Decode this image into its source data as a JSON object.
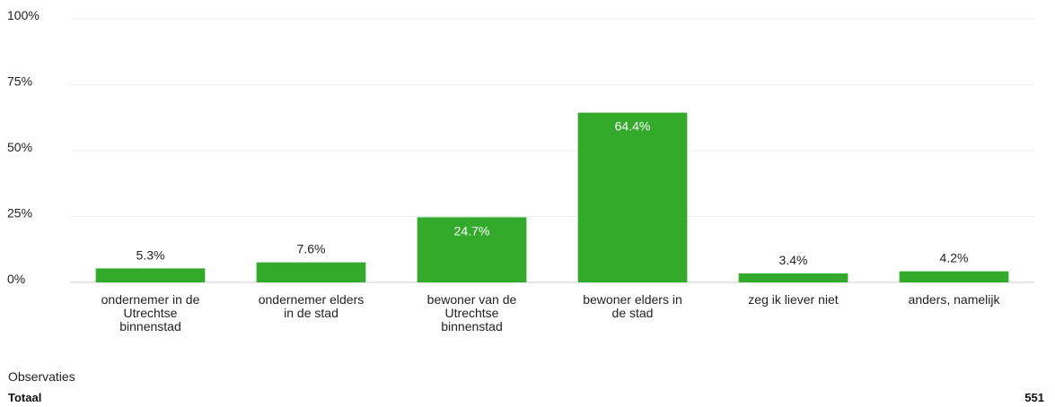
{
  "chart_data": {
    "type": "bar",
    "categories": [
      [
        "ondernemer in de",
        "Utrechtse",
        "binnenstad"
      ],
      [
        "ondernemer elders",
        "in de stad"
      ],
      [
        "bewoner van de",
        "Utrechtse",
        "binnenstad"
      ],
      [
        "bewoner elders in",
        "de stad"
      ],
      [
        "zeg ik liever niet"
      ],
      [
        "anders, namelijk"
      ]
    ],
    "values": [
      5.3,
      7.6,
      24.7,
      64.4,
      3.4,
      4.2
    ],
    "value_labels": [
      "5.3%",
      "7.6%",
      "24.7%",
      "64.4%",
      "3.4%",
      "4.2%"
    ],
    "yticks": [
      0,
      25,
      50,
      75,
      100
    ],
    "ytick_labels": [
      "0%",
      "25%",
      "50%",
      "75%",
      "100%"
    ],
    "ylim": [
      0,
      100
    ],
    "grid": true,
    "bar_color": "#33aa2c",
    "title": "",
    "xlabel": "",
    "ylabel": ""
  },
  "observations": {
    "heading": "Observaties",
    "total_label": "Totaal",
    "total_value": "551"
  }
}
